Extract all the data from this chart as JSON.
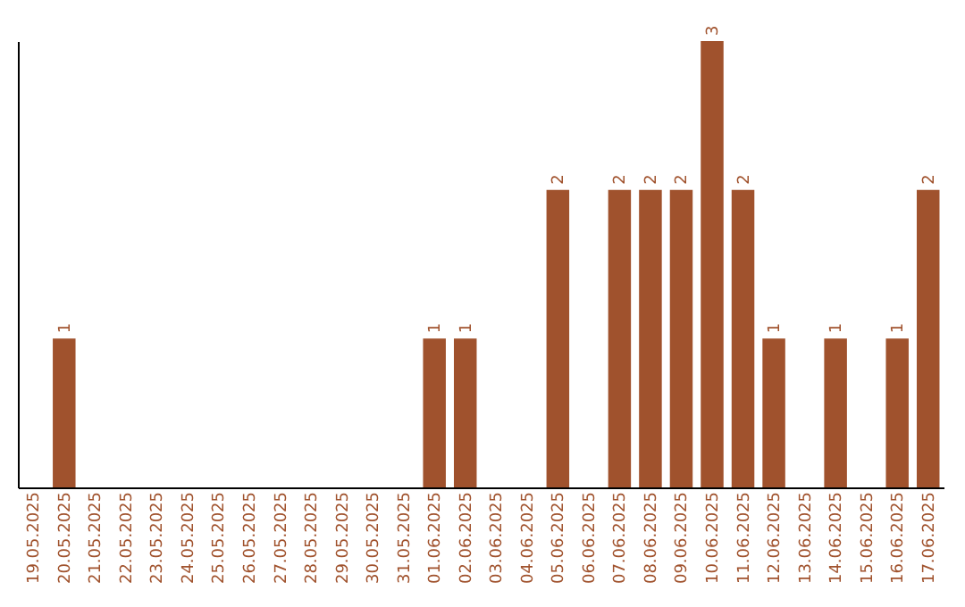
{
  "chart_data": {
    "type": "bar",
    "categories": [
      "19.05.2025",
      "20.05.2025",
      "21.05.2025",
      "22.05.2025",
      "23.05.2025",
      "24.05.2025",
      "25.05.2025",
      "26.05.2025",
      "27.05.2025",
      "28.05.2025",
      "29.05.2025",
      "30.05.2025",
      "31.05.2025",
      "01.06.2025",
      "02.06.2025",
      "03.06.2025",
      "04.06.2025",
      "05.06.2025",
      "06.06.2025",
      "07.06.2025",
      "08.06.2025",
      "09.06.2025",
      "10.06.2025",
      "11.06.2025",
      "12.06.2025",
      "13.06.2025",
      "14.06.2025",
      "15.06.2025",
      "16.06.2025",
      "17.06.2025"
    ],
    "values": [
      0,
      1,
      0,
      0,
      0,
      0,
      0,
      0,
      0,
      0,
      0,
      0,
      0,
      1,
      1,
      0,
      0,
      2,
      0,
      2,
      2,
      2,
      3,
      2,
      1,
      0,
      1,
      0,
      1,
      2
    ],
    "value_labels": [
      null,
      "1",
      null,
      null,
      null,
      null,
      null,
      null,
      null,
      null,
      null,
      null,
      null,
      "1",
      "1",
      null,
      null,
      "2",
      null,
      "2",
      "2",
      "2",
      "3",
      "2",
      "1",
      null,
      "1",
      null,
      "1",
      "2"
    ],
    "color": "#a0522d",
    "grid": false,
    "tick_labels": "x"
  }
}
